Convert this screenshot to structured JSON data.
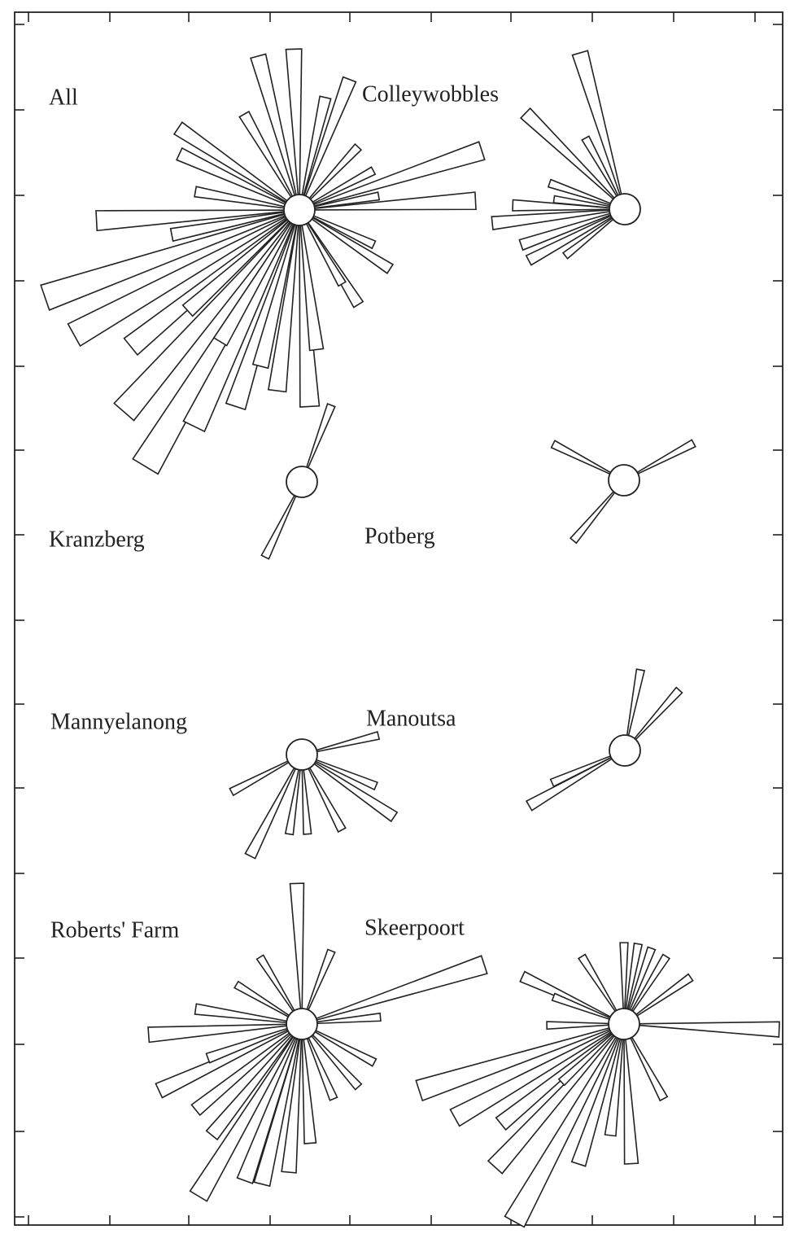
{
  "chart_data": [
    {
      "type": "rose",
      "title": "All",
      "directions": [
        358,
        345,
        21,
        13,
        330,
        304,
        295,
        280,
        72,
        87,
        62,
        43,
        80,
        267,
        259,
        251,
        241,
        231,
        221,
        211,
        206,
        198,
        187,
        177,
        173,
        148,
        123,
        115,
        150,
        194,
        211,
        228
      ],
      "values": [
        198,
        196,
        172,
        142,
        136,
        180,
        163,
        130,
        236,
        217,
        103,
        106,
        99,
        250,
        160,
        331,
        317,
        267,
        329,
        368,
        296,
        254,
        224,
        242,
        173,
        137,
        133,
        101,
        105,
        198,
        189,
        185
      ]
    },
    {
      "type": "rose",
      "title": "Colleywobbles",
      "directions": [
        344,
        314,
        331,
        289,
        264,
        272,
        251,
        242,
        232,
        278
      ],
      "values": [
        200,
        170,
        100,
        98,
        164,
        138,
        135,
        134,
        93,
        88
      ]
    },
    {
      "type": "rose",
      "title": "Kranzberg",
      "directions": [
        21,
        206
      ],
      "values": [
        101,
        103
      ]
    },
    {
      "type": "rose",
      "title": "Potberg",
      "directions": [
        62,
        297,
        220
      ],
      "values": [
        97,
        98,
        97
      ]
    },
    {
      "type": "rose",
      "title": "Mannyelanong",
      "directions": [
        76,
        242,
        207,
        189,
        176,
        152,
        124,
        113
      ],
      "values": [
        97,
        98,
        140,
        99,
        98,
        105,
        137,
        99
      ]
    },
    {
      "type": "rose",
      "title": "Manoutsa",
      "directions": [
        11,
        42,
        240,
        246
      ],
      "values": [
        101,
        100,
        136,
        98
      ]
    },
    {
      "type": "rose",
      "title": "Roberts' Farm",
      "directions": [
        358,
        72,
        22,
        328,
        301,
        278,
        266,
        85,
        118,
        138,
        245,
        231,
        219,
        211,
        200,
        194,
        185,
        176,
        250,
        157
      ],
      "values": [
        173,
        236,
        97,
        97,
        94,
        132,
        189,
        97,
        101,
        104,
        194,
        168,
        176,
        247,
        205,
        203,
        183,
        147,
        123,
        100
      ]
    },
    {
      "type": "rose",
      "title": "Skeerpoort",
      "directions": [
        92,
        295,
        328,
        0,
        10,
        20,
        32,
        55,
        291,
        269,
        252,
        241,
        231,
        222,
        209,
        198,
        187,
        177,
        152,
        227
      ],
      "values": [
        191,
        138,
        98,
        100,
        100,
        99,
        98,
        100,
        93,
        95,
        265,
        238,
        195,
        237,
        278,
        181,
        138,
        172,
        104,
        105
      ]
    }
  ]
}
